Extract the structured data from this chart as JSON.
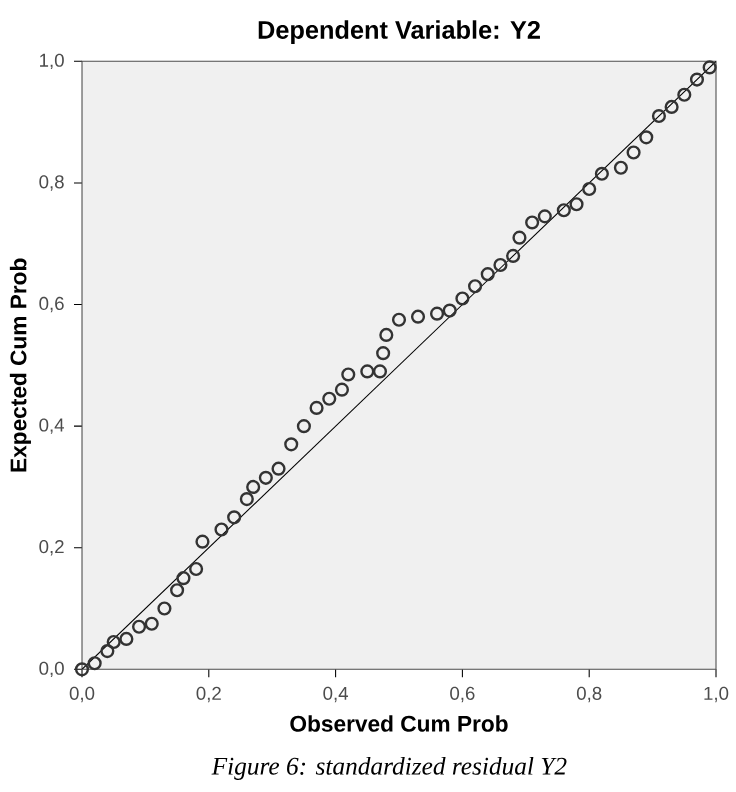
{
  "chart_data": {
    "type": "scatter",
    "title": "Dependent Variable: Y2",
    "xlabel": "Observed Cum Prob",
    "ylabel": "Expected Cum Prob",
    "annotations": [
      "Figure 6: standardized residual Y2"
    ],
    "xlim": [
      0,
      1
    ],
    "ylim": [
      0,
      1
    ],
    "xticks": [
      {
        "value": 0,
        "label": "0,0"
      },
      {
        "value": 0.2,
        "label": "0,2"
      },
      {
        "value": 0.4,
        "label": "0,4"
      },
      {
        "value": 0.6,
        "label": "0,6"
      },
      {
        "value": 0.8,
        "label": "0,8"
      },
      {
        "value": 1,
        "label": "1,0"
      }
    ],
    "yticks": [
      {
        "value": 0,
        "label": "0,0"
      },
      {
        "value": 0.2,
        "label": "0,2"
      },
      {
        "value": 0.4,
        "label": "0,4"
      },
      {
        "value": 0.6,
        "label": "0,6"
      },
      {
        "value": 0.8,
        "label": "0,8"
      },
      {
        "value": 1,
        "label": "1,0"
      }
    ],
    "grid": false,
    "series": [
      {
        "color": "#333333",
        "marker": "circle",
        "x": [
          0,
          0.02,
          0.04,
          0.05,
          0.07,
          0.09,
          0.11,
          0.13,
          0.15,
          0.16,
          0.18,
          0.19,
          0.22,
          0.24,
          0.26,
          0.27,
          0.29,
          0.31,
          0.33,
          0.35,
          0.37,
          0.39,
          0.41,
          0.42,
          0.45,
          0.47,
          0.475,
          0.48,
          0.5,
          0.53,
          0.56,
          0.58,
          0.6,
          0.62,
          0.64,
          0.66,
          0.68,
          0.69,
          0.71,
          0.73,
          0.76,
          0.78,
          0.8,
          0.82,
          0.85,
          0.87,
          0.89,
          0.91,
          0.93,
          0.95,
          0.97,
          0.99
        ],
        "values": [
          0,
          0.01,
          0.03,
          0.045,
          0.05,
          0.07,
          0.075,
          0.1,
          0.13,
          0.15,
          0.165,
          0.21,
          0.23,
          0.25,
          0.28,
          0.3,
          0.315,
          0.33,
          0.37,
          0.4,
          0.43,
          0.445,
          0.46,
          0.485,
          0.49,
          0.49,
          0.52,
          0.55,
          0.575,
          0.58,
          0.585,
          0.59,
          0.61,
          0.63,
          0.65,
          0.665,
          0.68,
          0.71,
          0.735,
          0.745,
          0.755,
          0.765,
          0.79,
          0.815,
          0.825,
          0.85,
          0.875,
          0.91,
          0.925,
          0.945,
          0.97,
          0.99
        ]
      },
      {
        "type": "line",
        "marker": "none",
        "color": "#000000",
        "x": [
          0,
          1
        ],
        "values": [
          0,
          1
        ]
      }
    ]
  }
}
